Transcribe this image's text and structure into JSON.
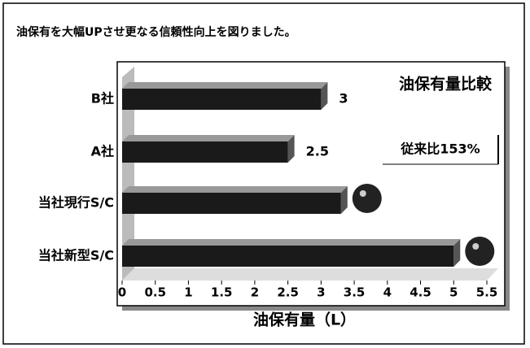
{
  "header": {
    "text": "油保有を大幅UPさせ更なる信頼性向上を図りました。"
  },
  "chart_data": {
    "type": "bar",
    "orientation": "horizontal",
    "title": "油保有量比較",
    "annotation": "従来比153%",
    "xlabel": "油保有量（L）",
    "categories": [
      "B社",
      "A社",
      "当社現行S/C",
      "当社新型S/C"
    ],
    "values": [
      3,
      2.5,
      3.3,
      5.0
    ],
    "value_labels": [
      "3",
      "2.5",
      null,
      null
    ],
    "color": "#1a1a1a",
    "xlim": [
      0,
      5.5
    ],
    "xticks": [
      0,
      0.5,
      1,
      1.5,
      2,
      2.5,
      3,
      3.5,
      4,
      4.5,
      5,
      5.5
    ]
  }
}
